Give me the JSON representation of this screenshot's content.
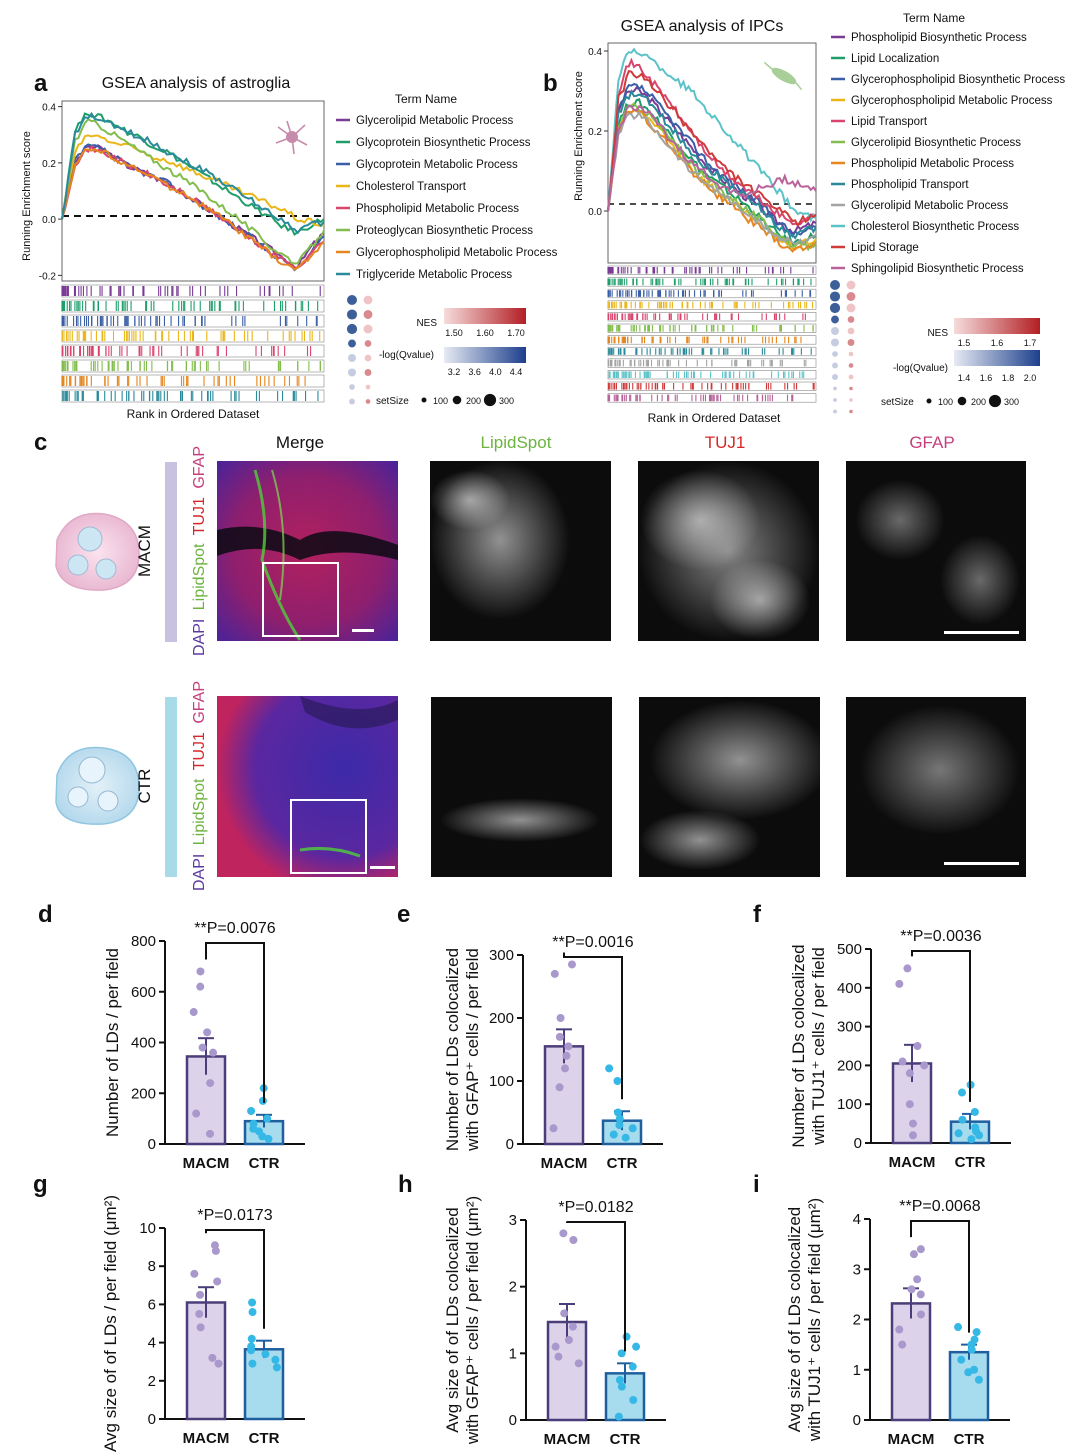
{
  "panels": {
    "a": {
      "label": "a",
      "title": "GSEA analysis of astroglia",
      "ylabel": "Running Enrichment score",
      "xlabel": "Rank in Ordered Dataset",
      "yticks": [
        "0.4",
        "0.2",
        "0.0",
        "-0.2"
      ],
      "legend_title": "Term Name",
      "terms": [
        {
          "name": "Glycerolipid Metabolic Process",
          "color": "#7a3b96"
        },
        {
          "name": "Glycoprotein Biosynthetic Process",
          "color": "#1f9e6a"
        },
        {
          "name": "Glycoprotein Metabolic Process",
          "color": "#3b5fa6"
        },
        {
          "name": "Cholesterol Transport",
          "color": "#e9b71a"
        },
        {
          "name": "Phospholipid Metabolic Process",
          "color": "#d9456d"
        },
        {
          "name": "Proteoglycan Biosynthetic Process",
          "color": "#82bd4e"
        },
        {
          "name": "Glycerophospholipid Metabolic Process",
          "color": "#e5861f"
        },
        {
          "name": "Triglyceride Metabolic Process",
          "color": "#2a8a9a"
        }
      ],
      "nes": {
        "label": "NES",
        "ticks": [
          "1.50",
          "1.60",
          "1.70"
        ]
      },
      "qval": {
        "label": "-log(Qvalue)",
        "ticks": [
          "3.2",
          "3.6",
          "4.0",
          "4.4"
        ]
      },
      "setsize": {
        "label": "setSize",
        "ticks": [
          "100",
          "200",
          "300"
        ]
      }
    },
    "b": {
      "label": "b",
      "title": "GSEA analysis of IPCs",
      "ylabel": "Running Enrichment score",
      "xlabel": "Rank in Ordered Dataset",
      "yticks": [
        "0.4",
        "0.2",
        "0.0"
      ],
      "legend_title": "Term Name",
      "terms": [
        {
          "name": "Phospholipid Biosynthetic Process",
          "color": "#7a3b96"
        },
        {
          "name": "Lipid Localization",
          "color": "#1f9e6a"
        },
        {
          "name": "Glycerophospholipid Biosynthetic Process",
          "color": "#3b5fa6"
        },
        {
          "name": "Glycerophospholipid Metabolic Process",
          "color": "#e9b71a"
        },
        {
          "name": "Lipid Transport",
          "color": "#d9456d"
        },
        {
          "name": "Glycerolipid Biosynthetic Process",
          "color": "#82bd4e"
        },
        {
          "name": "Phospholipid Metabolic Process",
          "color": "#e5861f"
        },
        {
          "name": "Phospholipid Transport",
          "color": "#2a8a9a"
        },
        {
          "name": "Glycerolipid Metabolic Process",
          "color": "#a3a3a3"
        },
        {
          "name": "Cholesterol Biosynthetic Process",
          "color": "#5bc3c8"
        },
        {
          "name": "Lipid Storage",
          "color": "#cf3a3a"
        },
        {
          "name": "Sphingolipid Biosynthetic Process",
          "color": "#b8639a"
        }
      ],
      "nes": {
        "label": "NES",
        "ticks": [
          "1.5",
          "1.6",
          "1.7"
        ]
      },
      "qval": {
        "label": "-log(Qvalue)",
        "ticks": [
          "1.4",
          "1.6",
          "1.8",
          "2.0"
        ]
      },
      "setsize": {
        "label": "setSize",
        "ticks": [
          "100",
          "200",
          "300"
        ]
      }
    },
    "c": {
      "label": "c",
      "columns": [
        "Merge",
        "LipidSpot",
        "TUJ1",
        "GFAP"
      ],
      "column_colors": [
        "#111111",
        "#6cb33f",
        "#d62828",
        "#c4407d"
      ],
      "rows": [
        "MACM",
        "CTR"
      ],
      "row_colors": [
        "#c9c1e0",
        "#a7dbe8"
      ],
      "stain_parts": [
        {
          "text": "DAPI",
          "color": "#5b3aa0"
        },
        {
          "text": "LipidSpot",
          "color": "#6cb33f"
        },
        {
          "text": "TUJ1",
          "color": "#d62828"
        },
        {
          "text": "GFAP",
          "color": "#c4407d"
        }
      ]
    }
  },
  "chart_data": [
    {
      "panel": "a",
      "type": "line",
      "title": "GSEA analysis of astroglia",
      "xlabel": "Rank in Ordered Dataset",
      "ylabel": "Running Enrichment score",
      "ylim": [
        -0.22,
        0.42
      ],
      "x": [
        0,
        5,
        10,
        15,
        20,
        25,
        30,
        35,
        40,
        45,
        50,
        55,
        60,
        65,
        70,
        75,
        80,
        85,
        90,
        95,
        100
      ],
      "series": [
        {
          "name": "Glycerolipid Metabolic Process",
          "values": [
            0.0,
            0.2,
            0.26,
            0.25,
            0.22,
            0.19,
            0.17,
            0.15,
            0.13,
            0.1,
            0.07,
            0.04,
            0.01,
            -0.02,
            -0.05,
            -0.08,
            -0.11,
            -0.14,
            -0.17,
            -0.1,
            -0.05
          ]
        },
        {
          "name": "Glycoprotein Biosynthetic Process",
          "values": [
            0.0,
            0.32,
            0.38,
            0.36,
            0.34,
            0.31,
            0.29,
            0.26,
            0.24,
            0.21,
            0.18,
            0.15,
            0.12,
            0.09,
            0.06,
            0.03,
            0.0,
            -0.03,
            -0.05,
            -0.02,
            0.0
          ]
        },
        {
          "name": "Glycoprotein Metabolic Process",
          "values": [
            0.0,
            0.21,
            0.26,
            0.25,
            0.22,
            0.19,
            0.17,
            0.15,
            0.13,
            0.1,
            0.07,
            0.04,
            0.01,
            -0.02,
            -0.05,
            -0.09,
            -0.12,
            -0.15,
            -0.18,
            -0.12,
            -0.06
          ]
        },
        {
          "name": "Cholesterol Transport",
          "values": [
            0.0,
            0.24,
            0.3,
            0.29,
            0.27,
            0.26,
            0.24,
            0.22,
            0.21,
            0.19,
            0.17,
            0.15,
            0.13,
            0.11,
            0.09,
            0.07,
            0.05,
            0.03,
            0.0,
            -0.01,
            -0.02
          ]
        },
        {
          "name": "Phospholipid Metabolic Process",
          "values": [
            0.0,
            0.2,
            0.25,
            0.24,
            0.22,
            0.19,
            0.17,
            0.15,
            0.12,
            0.1,
            0.07,
            0.04,
            0.01,
            -0.02,
            -0.06,
            -0.09,
            -0.12,
            -0.15,
            -0.17,
            -0.12,
            -0.08
          ]
        },
        {
          "name": "Proteoglycan Biosynthetic Process",
          "values": [
            0.0,
            0.28,
            0.35,
            0.33,
            0.3,
            0.27,
            0.24,
            0.21,
            0.18,
            0.15,
            0.12,
            0.09,
            0.05,
            0.02,
            -0.02,
            -0.06,
            -0.1,
            -0.13,
            -0.16,
            -0.1,
            -0.04
          ]
        },
        {
          "name": "Glycerophospholipid Metabolic Process",
          "values": [
            0.0,
            0.2,
            0.25,
            0.24,
            0.22,
            0.19,
            0.17,
            0.15,
            0.12,
            0.1,
            0.07,
            0.04,
            0.01,
            -0.02,
            -0.06,
            -0.09,
            -0.13,
            -0.16,
            -0.18,
            -0.13,
            -0.08
          ]
        },
        {
          "name": "Triglyceride Metabolic Process",
          "values": [
            0.0,
            0.3,
            0.37,
            0.35,
            0.33,
            0.31,
            0.29,
            0.27,
            0.24,
            0.22,
            0.19,
            0.17,
            0.14,
            0.11,
            0.08,
            0.05,
            0.02,
            -0.01,
            -0.04,
            -0.02,
            -0.01
          ]
        }
      ]
    },
    {
      "panel": "b",
      "type": "line",
      "title": "GSEA analysis of IPCs",
      "xlabel": "Rank in Ordered Dataset",
      "ylabel": "Running Enrichment score",
      "ylim": [
        -0.13,
        0.42
      ],
      "x": [
        0,
        5,
        10,
        15,
        20,
        25,
        30,
        35,
        40,
        45,
        50,
        55,
        60,
        65,
        70,
        75,
        80,
        85,
        90,
        95,
        100
      ],
      "series": [
        {
          "name": "Phospholipid Biosynthetic Process",
          "values": [
            0.0,
            0.25,
            0.3,
            0.3,
            0.28,
            0.25,
            0.22,
            0.19,
            0.16,
            0.13,
            0.1,
            0.08,
            0.06,
            0.04,
            0.02,
            0.0,
            -0.02,
            -0.04,
            -0.05,
            -0.04,
            -0.03
          ]
        },
        {
          "name": "Lipid Localization",
          "values": [
            0.0,
            0.22,
            0.27,
            0.27,
            0.25,
            0.22,
            0.19,
            0.16,
            0.13,
            0.1,
            0.08,
            0.06,
            0.04,
            0.02,
            0.0,
            -0.03,
            -0.05,
            -0.07,
            -0.08,
            -0.07,
            -0.06
          ]
        },
        {
          "name": "Glycerophospholipid Biosynthetic Process",
          "values": [
            0.0,
            0.25,
            0.31,
            0.31,
            0.29,
            0.26,
            0.23,
            0.2,
            0.17,
            0.14,
            0.11,
            0.09,
            0.07,
            0.05,
            0.03,
            0.01,
            -0.02,
            -0.04,
            -0.06,
            -0.05,
            -0.04
          ]
        },
        {
          "name": "Glycerophospholipid Metabolic Process",
          "values": [
            0.0,
            0.2,
            0.25,
            0.25,
            0.23,
            0.2,
            0.17,
            0.14,
            0.11,
            0.08,
            0.06,
            0.04,
            0.02,
            0.0,
            -0.02,
            -0.04,
            -0.06,
            -0.08,
            -0.09,
            -0.08,
            -0.07
          ]
        },
        {
          "name": "Lipid Transport",
          "values": [
            0.0,
            0.3,
            0.37,
            0.36,
            0.33,
            0.3,
            0.27,
            0.23,
            0.2,
            0.16,
            0.13,
            0.1,
            0.08,
            0.06,
            0.04,
            0.02,
            0.0,
            -0.02,
            -0.03,
            -0.02,
            -0.01
          ]
        },
        {
          "name": "Glycerolipid Biosynthetic Process",
          "values": [
            0.0,
            0.21,
            0.26,
            0.26,
            0.24,
            0.21,
            0.18,
            0.15,
            0.12,
            0.09,
            0.07,
            0.05,
            0.03,
            0.01,
            -0.01,
            -0.03,
            -0.05,
            -0.07,
            -0.09,
            -0.09,
            -0.08
          ]
        },
        {
          "name": "Phospholipid Metabolic Process",
          "values": [
            0.0,
            0.2,
            0.25,
            0.25,
            0.22,
            0.19,
            0.16,
            0.13,
            0.1,
            0.08,
            0.05,
            0.03,
            0.01,
            -0.01,
            -0.03,
            -0.05,
            -0.07,
            -0.09,
            -0.1,
            -0.09,
            -0.08
          ]
        },
        {
          "name": "Phospholipid Transport",
          "values": [
            0.0,
            0.24,
            0.29,
            0.29,
            0.27,
            0.24,
            0.21,
            0.18,
            0.15,
            0.12,
            0.1,
            0.08,
            0.06,
            0.04,
            0.02,
            0.0,
            -0.03,
            -0.05,
            -0.06,
            -0.05,
            -0.04
          ]
        },
        {
          "name": "Glycerolipid Metabolic Process",
          "values": [
            0.0,
            0.19,
            0.24,
            0.24,
            0.22,
            0.19,
            0.16,
            0.13,
            0.1,
            0.08,
            0.06,
            0.04,
            0.02,
            0.0,
            -0.02,
            -0.04,
            -0.06,
            -0.07,
            -0.08,
            -0.07,
            -0.06
          ]
        },
        {
          "name": "Cholesterol Biosynthetic Process",
          "values": [
            0.0,
            0.33,
            0.4,
            0.4,
            0.38,
            0.36,
            0.34,
            0.32,
            0.3,
            0.27,
            0.24,
            0.21,
            0.18,
            0.15,
            0.12,
            0.09,
            0.06,
            0.03,
            0.0,
            -0.01,
            -0.02
          ]
        },
        {
          "name": "Lipid Storage",
          "values": [
            0.0,
            0.28,
            0.34,
            0.34,
            0.32,
            0.29,
            0.26,
            0.23,
            0.2,
            0.17,
            0.14,
            0.11,
            0.09,
            0.07,
            0.05,
            0.03,
            0.01,
            -0.01,
            -0.03,
            -0.02,
            -0.01
          ]
        },
        {
          "name": "Sphingolipid Biosynthetic Process",
          "values": [
            0.0,
            0.2,
            0.26,
            0.26,
            0.24,
            0.21,
            0.18,
            0.15,
            0.12,
            0.1,
            0.08,
            0.06,
            0.05,
            0.04,
            0.05,
            0.06,
            0.07,
            0.08,
            0.07,
            0.06,
            0.05
          ]
        }
      ]
    },
    {
      "panel": "d",
      "type": "bar",
      "categories": [
        "MACM",
        "CTR"
      ],
      "means": [
        345,
        90
      ],
      "sem": [
        72,
        25
      ],
      "points": [
        [
          680,
          620,
          520,
          440,
          380,
          360,
          240,
          120,
          40
        ],
        [
          220,
          170,
          130,
          100,
          80,
          60,
          50,
          30,
          20
        ]
      ],
      "ylabel": "Number of LDs / per field",
      "ylim": [
        0,
        800
      ],
      "yticks": [
        0,
        200,
        400,
        600,
        800
      ],
      "significance": "**P=0.0076"
    },
    {
      "panel": "e",
      "type": "bar",
      "categories": [
        "MACM",
        "CTR"
      ],
      "means": [
        155,
        37
      ],
      "sem": [
        27,
        15
      ],
      "points": [
        [
          285,
          270,
          200,
          170,
          155,
          140,
          120,
          90,
          25
        ],
        [
          120,
          100,
          50,
          40,
          30,
          25,
          15,
          10
        ]
      ],
      "ylabel": "Number of LDs colocalized with GFAP⁺ cells / per field",
      "ylim": [
        0,
        300
      ],
      "yticks": [
        0,
        100,
        200,
        300
      ],
      "significance": "**P=0.0016"
    },
    {
      "panel": "f",
      "type": "bar",
      "categories": [
        "MACM",
        "CTR"
      ],
      "means": [
        205,
        55
      ],
      "sem": [
        48,
        20
      ],
      "points": [
        [
          450,
          410,
          250,
          210,
          200,
          180,
          100,
          50,
          20
        ],
        [
          150,
          130,
          80,
          60,
          40,
          30,
          25,
          20,
          10
        ]
      ],
      "ylabel": "Number of LDs colocalized with TUJ1⁺ cells / per field",
      "ylim": [
        0,
        500
      ],
      "yticks": [
        0,
        100,
        200,
        300,
        400,
        500
      ],
      "significance": "**P=0.0036"
    },
    {
      "panel": "g",
      "type": "bar",
      "categories": [
        "MACM",
        "CTR"
      ],
      "means": [
        6.1,
        3.65
      ],
      "sem": [
        0.8,
        0.45
      ],
      "points": [
        [
          9.1,
          8.8,
          7.6,
          7.2,
          6.5,
          5.5,
          4.8,
          3.2,
          2.9
        ],
        [
          6.1,
          5.6,
          4.2,
          3.8,
          3.6,
          3.4,
          3.1,
          2.9,
          2.7
        ]
      ],
      "ylabel": "Avg size of of LDs / per field (μm²)",
      "ylim": [
        0,
        10
      ],
      "yticks": [
        0,
        2,
        4,
        6,
        8,
        10
      ],
      "significance": "*P=0.0173"
    },
    {
      "panel": "h",
      "type": "bar",
      "categories": [
        "MACM",
        "CTR"
      ],
      "means": [
        1.47,
        0.7
      ],
      "sem": [
        0.27,
        0.15
      ],
      "points": [
        [
          2.8,
          2.7,
          1.6,
          1.4,
          1.2,
          1.1,
          0.95,
          0.85
        ],
        [
          1.25,
          1.1,
          1.0,
          0.8,
          0.6,
          0.5,
          0.3,
          0.05
        ]
      ],
      "ylabel": "Avg size of of LDs colocalized with GFAP⁺ cells / per field (μm²)",
      "ylim": [
        0,
        3
      ],
      "yticks": [
        0,
        1,
        2,
        3
      ],
      "significance": "*P=0.0182"
    },
    {
      "panel": "i",
      "type": "bar",
      "categories": [
        "MACM",
        "CTR"
      ],
      "means": [
        2.32,
        1.35
      ],
      "sem": [
        0.3,
        0.15
      ],
      "points": [
        [
          3.4,
          3.3,
          2.8,
          2.6,
          2.5,
          2.1,
          1.8,
          1.5
        ],
        [
          1.85,
          1.75,
          1.6,
          1.5,
          1.4,
          1.2,
          1.0,
          0.95,
          0.8
        ]
      ],
      "ylabel": "Avg size of of LDs colocalized with TUJ1⁺ cells / per field (μm²)",
      "ylim": [
        0,
        4
      ],
      "yticks": [
        0,
        1,
        2,
        3,
        4
      ],
      "significance": "**P=0.0068"
    }
  ],
  "bar_labels": {
    "d": "d",
    "e": "e",
    "f": "f",
    "g": "g",
    "h": "h",
    "i": "i"
  },
  "colors": {
    "macm_bar": "#dcd3ea",
    "macm_edge": "#4b3d7a",
    "macm_dot": "#a898cc",
    "ctr_bar": "#a7dbee",
    "ctr_edge": "#1f5f9e",
    "ctr_dot": "#35b8e6"
  }
}
